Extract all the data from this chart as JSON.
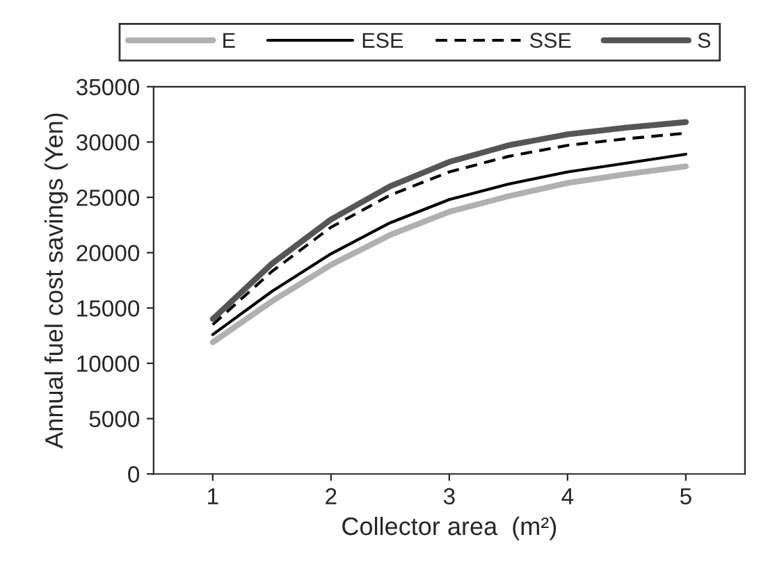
{
  "chart_data": {
    "type": "line",
    "xlabel": "Collector area  (m²)",
    "ylabel": "Annual fuel cost savings (Yen)",
    "x": [
      1,
      1.5,
      2,
      2.5,
      3,
      3.5,
      4,
      4.5,
      5
    ],
    "series": [
      {
        "name": "E",
        "color": "#b0b0b0",
        "line_style": "solid",
        "values": [
          11900,
          15600,
          18900,
          21600,
          23700,
          25100,
          26300,
          27100,
          27800
        ]
      },
      {
        "name": "ESE",
        "color": "#000000",
        "line_style": "solid",
        "values": [
          12600,
          16500,
          19900,
          22700,
          24800,
          26200,
          27300,
          28100,
          28900
        ]
      },
      {
        "name": "SSE",
        "color": "#000000",
        "line_style": "dashed",
        "values": [
          13500,
          18300,
          22300,
          25200,
          27300,
          28700,
          29700,
          30300,
          30800
        ]
      },
      {
        "name": "S",
        "color": "#555555",
        "line_style": "solid",
        "values": [
          14000,
          19000,
          23000,
          26000,
          28200,
          29700,
          30700,
          31300,
          31800
        ]
      }
    ],
    "xlim": [
      0.5,
      5.5
    ],
    "xticks": [
      1,
      2,
      3,
      4,
      5
    ],
    "ylim": [
      0,
      35000
    ],
    "yticks": [
      0,
      5000,
      10000,
      15000,
      20000,
      25000,
      30000,
      35000
    ],
    "grid": false,
    "legend": "top",
    "marker": "none"
  }
}
